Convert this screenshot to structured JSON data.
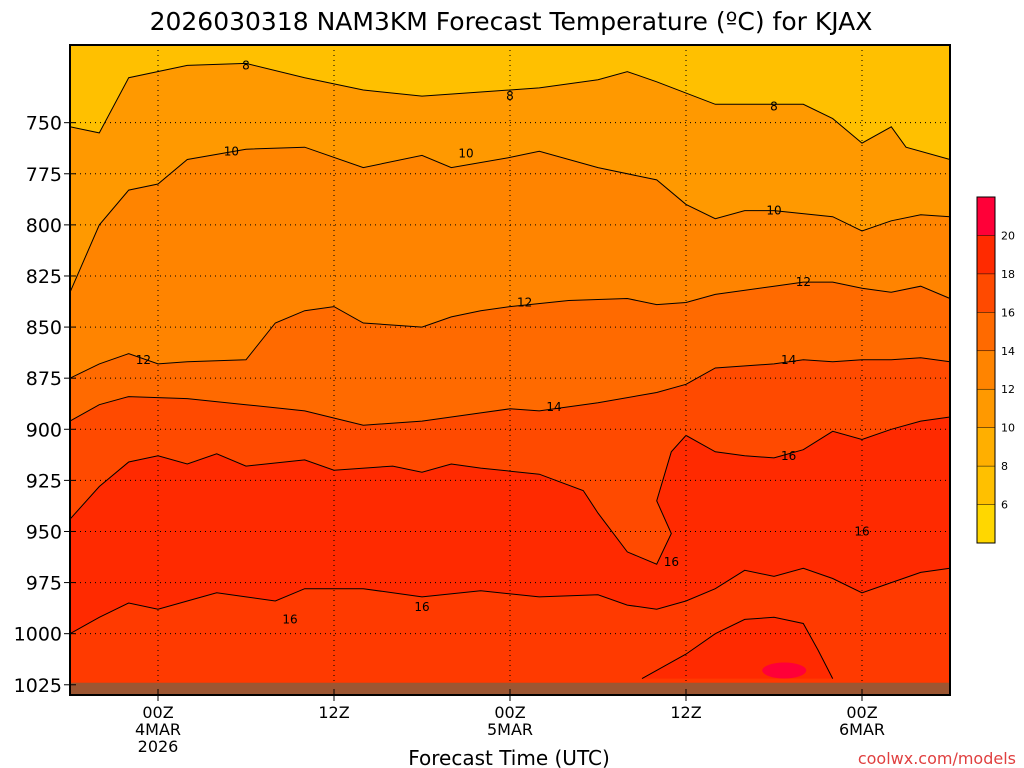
{
  "chart_data": {
    "type": "contour",
    "title": "2026030318 NAM3KM Forecast Temperature (ºC) for KJAX",
    "xlabel": "Forecast Time (UTC)",
    "ylabel": "",
    "credit": "coolwx.com/models",
    "x_ticks": [
      {
        "hour": 6,
        "lines": [
          "00Z",
          "4MAR",
          "2026"
        ]
      },
      {
        "hour": 18,
        "lines": [
          "12Z"
        ]
      },
      {
        "hour": 30,
        "lines": [
          "00Z",
          "5MAR"
        ]
      },
      {
        "hour": 42,
        "lines": [
          "12Z"
        ]
      },
      {
        "hour": 54,
        "lines": [
          "00Z",
          "6MAR"
        ]
      }
    ],
    "xlim": [
      0,
      60
    ],
    "y_ticks": [
      750,
      775,
      800,
      825,
      850,
      875,
      900,
      925,
      950,
      975,
      1000,
      1025
    ],
    "ylim": [
      1030,
      712
    ],
    "colorbar": {
      "levels": [
        4,
        6,
        8,
        10,
        12,
        14,
        16,
        18,
        20,
        22
      ],
      "tick_labels": [
        "6",
        "8",
        "10",
        "12",
        "14",
        "16",
        "18",
        "20"
      ],
      "colors": [
        "#ffd700",
        "#ffc000",
        "#ffaf00",
        "#ff9900",
        "#ff8400",
        "#ff6a00",
        "#ff4a00",
        "#ff2a00",
        "#ff0038"
      ]
    },
    "isotherms": [
      {
        "value": 8,
        "label": "8",
        "points": [
          [
            0,
            752
          ],
          [
            2,
            755
          ],
          [
            4,
            728
          ],
          [
            8,
            722
          ],
          [
            12,
            721
          ],
          [
            16,
            728
          ],
          [
            20,
            734
          ],
          [
            24,
            737
          ],
          [
            28,
            735
          ],
          [
            32,
            733
          ],
          [
            36,
            729
          ],
          [
            38,
            725
          ],
          [
            40,
            730
          ],
          [
            44,
            741
          ],
          [
            48,
            741
          ],
          [
            50,
            741
          ],
          [
            52,
            748
          ],
          [
            54,
            760
          ],
          [
            56,
            752
          ],
          [
            57,
            762
          ],
          [
            60,
            768
          ]
        ],
        "labels": [
          [
            12,
            722
          ],
          [
            30,
            737
          ],
          [
            48,
            742
          ]
        ]
      },
      {
        "value": 10,
        "label": "10",
        "points": [
          [
            0,
            833
          ],
          [
            2,
            800
          ],
          [
            4,
            783
          ],
          [
            6,
            780
          ],
          [
            8,
            768
          ],
          [
            12,
            763
          ],
          [
            16,
            762
          ],
          [
            20,
            772
          ],
          [
            24,
            766
          ],
          [
            26,
            772
          ],
          [
            30,
            767
          ],
          [
            32,
            764
          ],
          [
            36,
            772
          ],
          [
            40,
            778
          ],
          [
            42,
            790
          ],
          [
            44,
            797
          ],
          [
            46,
            793
          ],
          [
            48,
            793
          ],
          [
            52,
            796
          ],
          [
            54,
            803
          ],
          [
            56,
            798
          ],
          [
            58,
            795
          ],
          [
            60,
            796
          ]
        ],
        "labels": [
          [
            11,
            764
          ],
          [
            27,
            765
          ],
          [
            48,
            793
          ]
        ]
      },
      {
        "value": 12,
        "label": "12",
        "points": [
          [
            0,
            875
          ],
          [
            2,
            868
          ],
          [
            4,
            863
          ],
          [
            6,
            868
          ],
          [
            8,
            867
          ],
          [
            12,
            866
          ],
          [
            14,
            848
          ],
          [
            16,
            842
          ],
          [
            18,
            840
          ],
          [
            20,
            848
          ],
          [
            24,
            850
          ],
          [
            26,
            845
          ],
          [
            28,
            842
          ],
          [
            30,
            840
          ],
          [
            34,
            837
          ],
          [
            38,
            836
          ],
          [
            40,
            839
          ],
          [
            42,
            838
          ],
          [
            44,
            834
          ],
          [
            48,
            830
          ],
          [
            50,
            828
          ],
          [
            52,
            828
          ],
          [
            54,
            831
          ],
          [
            56,
            833
          ],
          [
            58,
            830
          ],
          [
            60,
            836
          ]
        ],
        "labels": [
          [
            5,
            866
          ],
          [
            31,
            838
          ],
          [
            50,
            828
          ]
        ]
      },
      {
        "value": 14,
        "label": "14",
        "points": [
          [
            0,
            896
          ],
          [
            2,
            888
          ],
          [
            4,
            884
          ],
          [
            8,
            885
          ],
          [
            12,
            888
          ],
          [
            16,
            891
          ],
          [
            20,
            898
          ],
          [
            24,
            896
          ],
          [
            28,
            892
          ],
          [
            30,
            890
          ],
          [
            32,
            891
          ],
          [
            36,
            887
          ],
          [
            40,
            882
          ],
          [
            42,
            878
          ],
          [
            44,
            870
          ],
          [
            48,
            868
          ],
          [
            50,
            866
          ],
          [
            52,
            867
          ],
          [
            54,
            866
          ],
          [
            56,
            866
          ],
          [
            58,
            865
          ],
          [
            60,
            867
          ]
        ],
        "labels": [
          [
            33,
            889
          ],
          [
            49,
            866
          ]
        ]
      },
      {
        "value": 16,
        "label": "16",
        "points": [
          [
            0,
            944
          ],
          [
            2,
            928
          ],
          [
            4,
            916
          ],
          [
            6,
            913
          ],
          [
            8,
            917
          ],
          [
            10,
            912
          ],
          [
            12,
            918
          ],
          [
            16,
            915
          ],
          [
            18,
            920
          ],
          [
            22,
            918
          ],
          [
            24,
            921
          ],
          [
            26,
            917
          ],
          [
            28,
            919
          ],
          [
            32,
            922
          ],
          [
            35,
            930
          ],
          [
            36,
            941
          ],
          [
            38,
            960
          ],
          [
            40,
            966
          ],
          [
            41,
            951
          ],
          [
            40,
            935
          ],
          [
            41,
            911
          ],
          [
            42,
            903
          ],
          [
            44,
            911
          ],
          [
            46,
            913
          ],
          [
            48,
            914
          ],
          [
            50,
            910
          ],
          [
            52,
            901
          ],
          [
            54,
            905
          ],
          [
            56,
            900
          ],
          [
            58,
            896
          ],
          [
            60,
            894
          ]
        ],
        "labels": [
          [
            49,
            913
          ],
          [
            54,
            950
          ]
        ]
      },
      {
        "value": 16,
        "label": "16",
        "points": [
          [
            0,
            1000
          ],
          [
            2,
            992
          ],
          [
            4,
            985
          ],
          [
            6,
            988
          ],
          [
            8,
            984
          ],
          [
            10,
            980
          ],
          [
            12,
            982
          ],
          [
            14,
            984
          ],
          [
            16,
            978
          ],
          [
            20,
            978
          ],
          [
            24,
            982
          ],
          [
            28,
            979
          ],
          [
            32,
            982
          ],
          [
            36,
            981
          ],
          [
            38,
            986
          ],
          [
            40,
            988
          ],
          [
            42,
            984
          ],
          [
            44,
            978
          ],
          [
            46,
            969
          ],
          [
            48,
            972
          ],
          [
            50,
            968
          ],
          [
            52,
            973
          ],
          [
            54,
            980
          ],
          [
            56,
            975
          ],
          [
            58,
            970
          ],
          [
            60,
            968
          ]
        ],
        "labels": [
          [
            15,
            993
          ],
          [
            24,
            987
          ],
          [
            41,
            965
          ]
        ]
      },
      {
        "value": 18,
        "label": "",
        "points": [
          [
            39,
            1022
          ],
          [
            42,
            1010
          ],
          [
            44,
            1000
          ],
          [
            46,
            993
          ],
          [
            48,
            992
          ],
          [
            50,
            995
          ],
          [
            51,
            1008
          ],
          [
            52,
            1022
          ]
        ],
        "labels": []
      }
    ]
  }
}
